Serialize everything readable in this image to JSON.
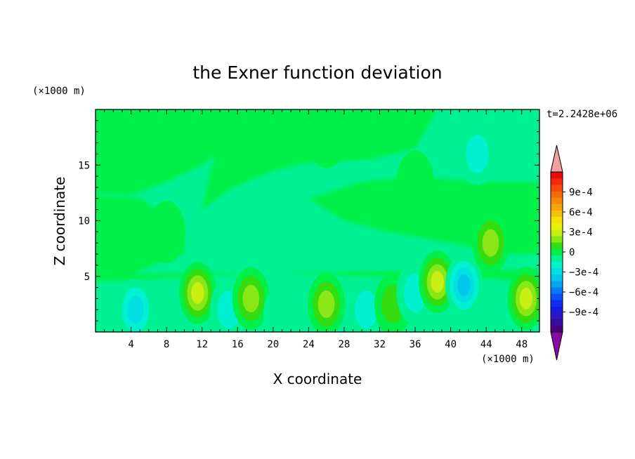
{
  "chart_data": {
    "type": "heatmap",
    "title": "the Exner function deviation",
    "xlabel": "X coordinate",
    "ylabel": "Z coordinate",
    "x_unit": "(×1000 m)",
    "z_unit": "(×1000 m)",
    "time_label": "t=2.2428e+06",
    "xlim": [
      0,
      50
    ],
    "zlim": [
      0,
      20
    ],
    "x_ticks": [
      4,
      8,
      12,
      16,
      20,
      24,
      28,
      32,
      36,
      40,
      44,
      48
    ],
    "z_ticks": [
      5,
      10,
      15
    ],
    "colorbar": {
      "levels": [
        -0.0012,
        -0.0011,
        -0.001,
        -0.0009,
        -0.0008,
        -0.0007,
        -0.0006,
        -0.0005,
        -0.0004,
        -0.0003,
        -0.0002,
        -0.0001,
        0,
        0.0001,
        0.0002,
        0.0003,
        0.0004,
        0.0005,
        0.0006,
        0.0007,
        0.0008,
        0.0009,
        0.001,
        0.0011,
        0.0012
      ],
      "colors": [
        "#4b0082",
        "#3d0a9e",
        "#2e16c8",
        "#1a1ae0",
        "#0f2ef0",
        "#0a52f5",
        "#0a79f5",
        "#0aa5f0",
        "#00c8e8",
        "#00e0e0",
        "#00f0d0",
        "#00f094",
        "#00f04a",
        "#33dd11",
        "#8ae614",
        "#c8ef14",
        "#e8f00a",
        "#f5e10a",
        "#f5c00a",
        "#f5a50a",
        "#f58a0a",
        "#f56a0a",
        "#f54a0a",
        "#f52a0a",
        "#e60a0a"
      ],
      "over_color": "#f2a0a0",
      "under_color": "#8a0aa8",
      "tick_labels": [
        "9e-4",
        "6e-4",
        "3e-4",
        "0",
        "−3e-4",
        "−6e-4",
        "−9e-4"
      ],
      "tick_values": [
        0.0009,
        0.0006,
        0.0003,
        0,
        -0.0003,
        -0.0006,
        -0.0009
      ]
    },
    "features": [
      {
        "x": 4.5,
        "z": 2.0,
        "value": -0.00025
      },
      {
        "x": 11.5,
        "z": 3.5,
        "value": 0.00035
      },
      {
        "x": 15.0,
        "z": 2.0,
        "value": -0.00022
      },
      {
        "x": 17.5,
        "z": 3.0,
        "value": 0.00025
      },
      {
        "x": 21.0,
        "z": 1.5,
        "value": -0.00012
      },
      {
        "x": 26.0,
        "z": 2.5,
        "value": 0.00033
      },
      {
        "x": 30.5,
        "z": 2.0,
        "value": -0.00018
      },
      {
        "x": 33.5,
        "z": 2.5,
        "value": 0.0002
      },
      {
        "x": 36.0,
        "z": 3.5,
        "value": -0.00018
      },
      {
        "x": 38.5,
        "z": 4.5,
        "value": 0.00035
      },
      {
        "x": 41.5,
        "z": 4.2,
        "value": -0.0004
      },
      {
        "x": 48.5,
        "z": 3.0,
        "value": 0.00035
      },
      {
        "x": 44.5,
        "z": 8.0,
        "value": 0.0003
      },
      {
        "x": 19.0,
        "z": 11.0,
        "value": -0.00013
      },
      {
        "x": 43.0,
        "z": 16.0,
        "value": -0.00018
      },
      {
        "x": 36.0,
        "z": 13.5,
        "value": 0.0001
      },
      {
        "x": 26.0,
        "z": 17.5,
        "value": 0.0001
      },
      {
        "x": 8.0,
        "z": 9.0,
        "value": 8e-05
      }
    ]
  }
}
